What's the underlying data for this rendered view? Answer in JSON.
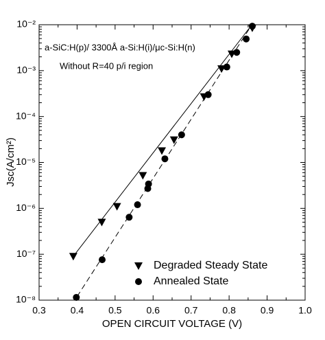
{
  "chart_data": {
    "type": "scatter",
    "x_label": "OPEN CIRCUIT VOLTAGE (V)",
    "y_label": "Jsc(A/cm²)",
    "annotations": [
      "a-SiC:H(p)/ 3300Å  a-Si:H(i)/μc-Si:H(n)",
      "Without R=40 p/i region"
    ],
    "xlim": [
      0.3,
      1.0
    ],
    "xticks": [
      0.3,
      0.4,
      0.5,
      0.6,
      0.7,
      0.8,
      0.9,
      {
        "value": 1,
        "label": "1.0"
      }
    ],
    "ylim": [
      1e-08,
      0.01
    ],
    "yticks": [
      {
        "value": 1e-08,
        "label": "10⁻⁸"
      },
      {
        "value": 1e-07,
        "label": "10⁻⁷"
      },
      {
        "value": 1e-06,
        "label": "10⁻⁶"
      },
      {
        "value": 1e-05,
        "label": "10⁻⁵"
      },
      {
        "value": 0.0001,
        "label": "10⁻⁴"
      },
      {
        "value": 0.001,
        "label": "10⁻³"
      },
      {
        "value": 0.01,
        "label": "10⁻²"
      }
    ],
    "y_scale": "log",
    "legend": "bottom-right",
    "series": [
      {
        "name": "Degraded Steady State",
        "color": "#000000",
        "marker": "triangle-down",
        "fit_style": "solid",
        "x": [
          0.39,
          0.465,
          0.505,
          0.573,
          0.623,
          0.655,
          0.734,
          0.78,
          0.807,
          0.861
        ],
        "values": [
          9e-08,
          5e-07,
          1.1e-06,
          5.2e-06,
          1.8e-05,
          3.1e-05,
          0.00027,
          0.0011,
          0.0023,
          0.0085
        ],
        "fit": {
          "x": [
            0.39,
            0.86
          ],
          "y": [
            9e-08,
            0.01
          ]
        }
      },
      {
        "name": "Annealed State",
        "color": "#000000",
        "marker": "circle",
        "fit_style": "dashed",
        "x": [
          0.398,
          0.466,
          0.537,
          0.559,
          0.586,
          0.588,
          0.631,
          0.675,
          0.745,
          0.794,
          0.82,
          0.845,
          0.861
        ],
        "values": [
          1.15e-08,
          7.6e-08,
          6.4e-07,
          1.2e-06,
          2.7e-06,
          3.4e-06,
          1.2e-05,
          4e-05,
          0.0003,
          0.0012,
          0.0025,
          0.0049,
          0.0093
        ],
        "fit": {
          "x": [
            0.4,
            0.86
          ],
          "y": [
            1.2e-08,
            0.01
          ]
        }
      }
    ]
  }
}
